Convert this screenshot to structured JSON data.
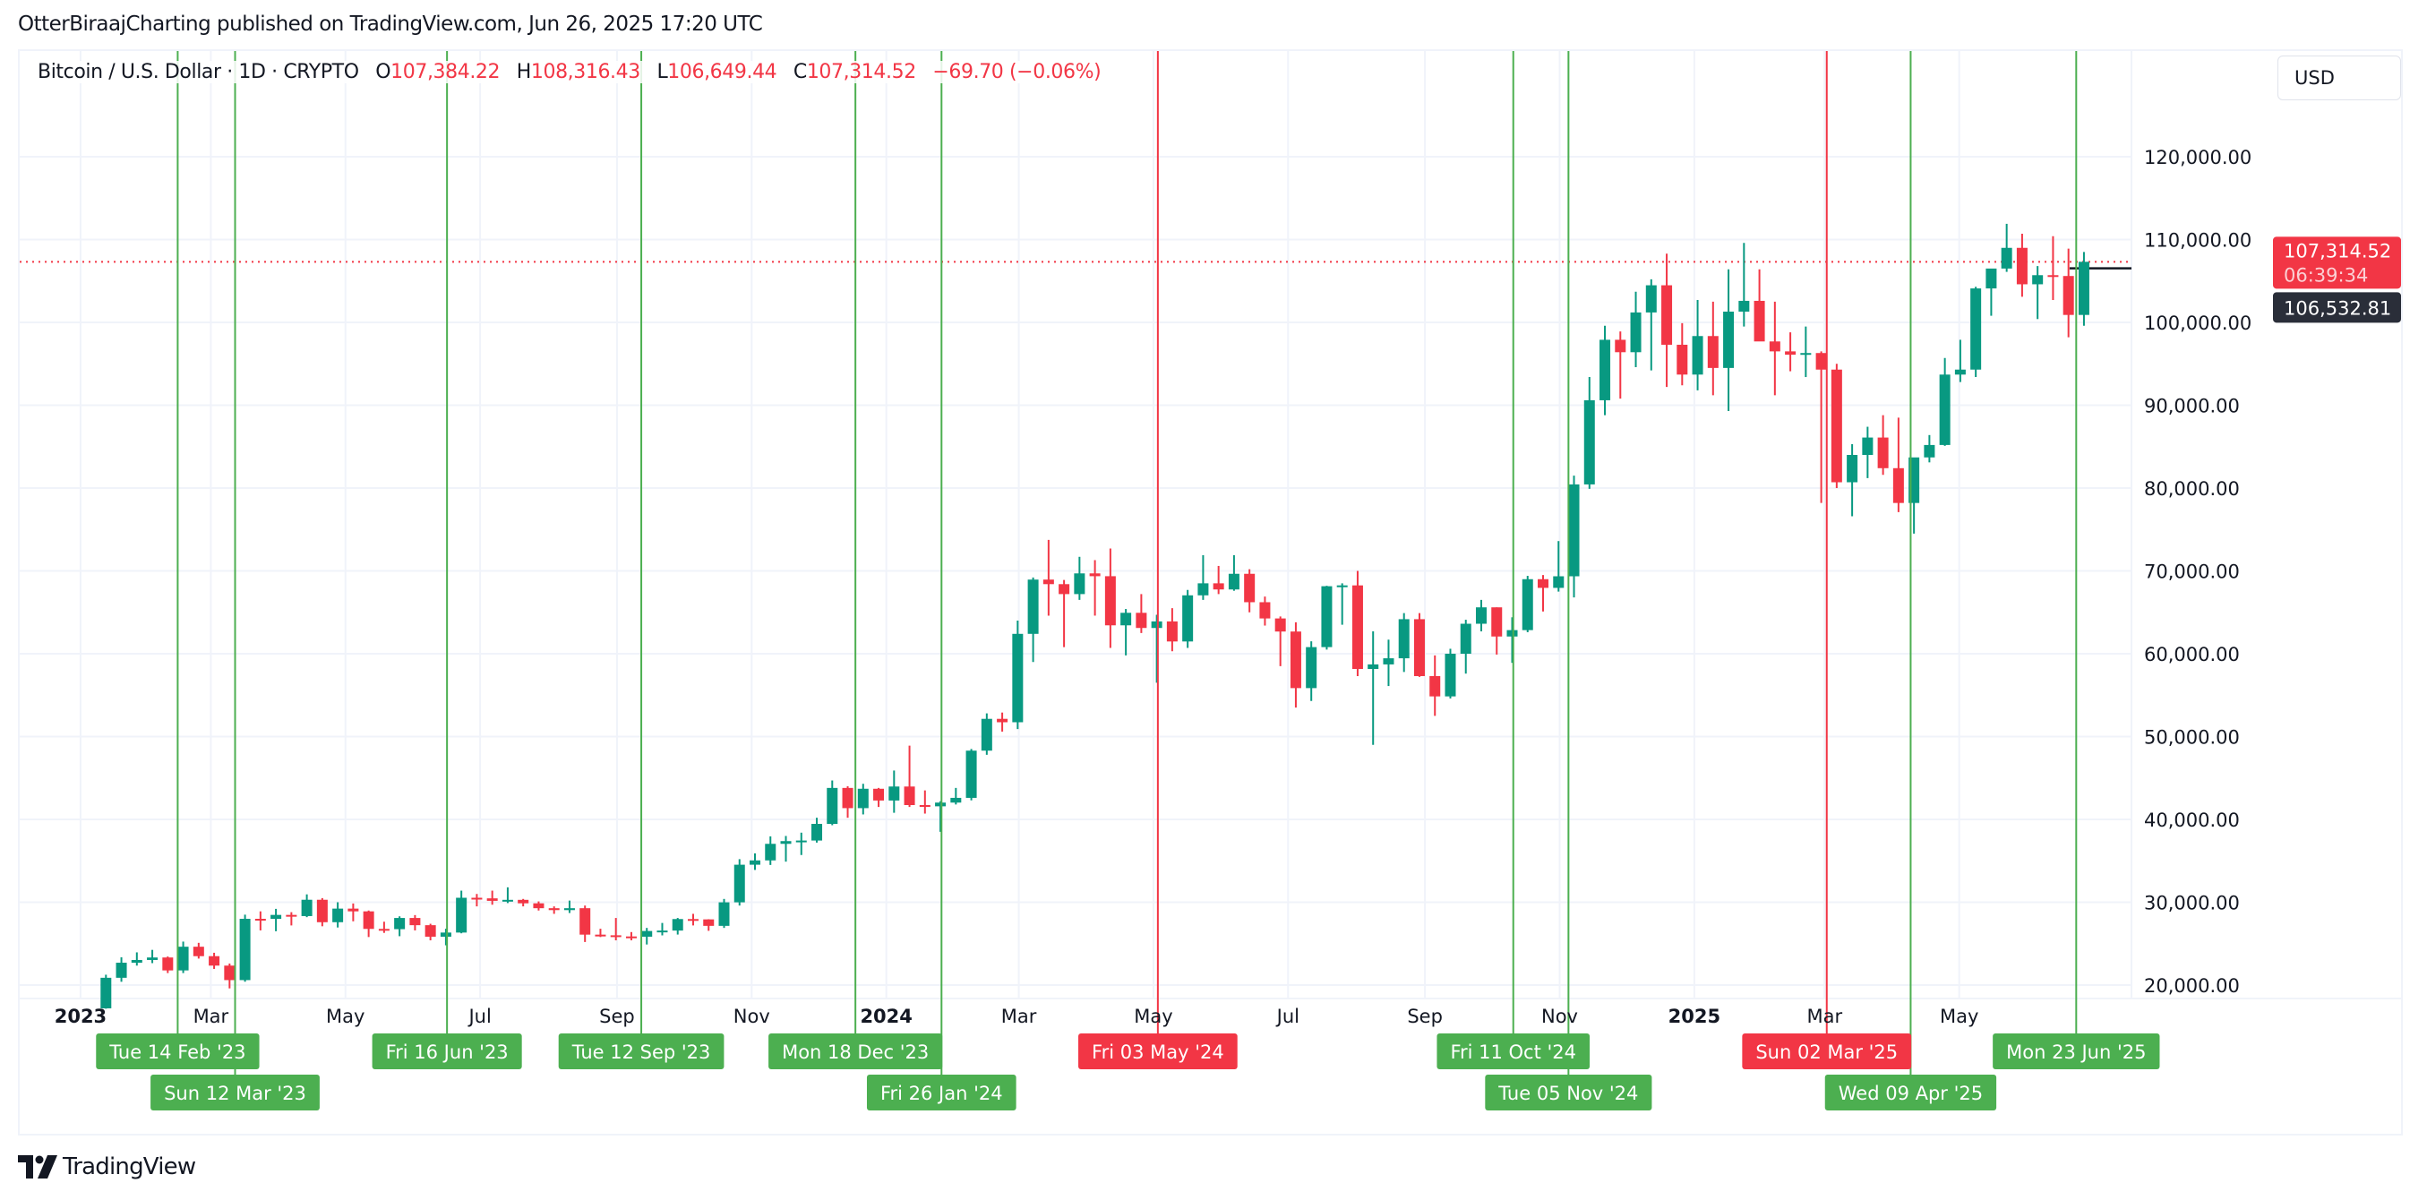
{
  "publisher": "OtterBiraajCharting published on TradingView.com, Jun 26, 2025 17:20 UTC",
  "legend": {
    "symbol": "Bitcoin / U.S. Dollar · 1D · CRYPTO",
    "open_label": "O",
    "open": "107,384.22",
    "high_label": "H",
    "high": "108,316.43",
    "low_label": "L",
    "low": "106,649.44",
    "close_label": "C",
    "close": "107,314.52",
    "change": "−69.70 (−0.06%)"
  },
  "currency_button": "USD",
  "brand": "TradingView",
  "colors": {
    "up": "#089981",
    "down": "#f23645",
    "green_marker": "#4caf50",
    "red_marker": "#f23645",
    "grid": "#f0f3fa",
    "text": "#131722"
  },
  "chart_data": {
    "type": "candlestick",
    "interval_shown": "1D",
    "start_week": "2023-01-09",
    "candle_fields": [
      "open",
      "high",
      "low",
      "close"
    ],
    "candles": [
      [
        17190,
        21250,
        17150,
        20880
      ],
      [
        20880,
        23350,
        20400,
        22700
      ],
      [
        22700,
        23950,
        22350,
        23030
      ],
      [
        23030,
        24250,
        22650,
        23330
      ],
      [
        23330,
        23450,
        21450,
        21770
      ],
      [
        21770,
        25250,
        21450,
        24630
      ],
      [
        24630,
        25100,
        23200,
        23490
      ],
      [
        23490,
        23900,
        21950,
        22350
      ],
      [
        22350,
        22600,
        19600,
        20600
      ],
      [
        20600,
        28500,
        20400,
        28000
      ],
      [
        28000,
        28900,
        26600,
        27990
      ],
      [
        27990,
        29200,
        26500,
        28470
      ],
      [
        28470,
        28800,
        27200,
        28330
      ],
      [
        28330,
        30950,
        28200,
        30300
      ],
      [
        30300,
        30500,
        27100,
        27590
      ],
      [
        27590,
        30000,
        26950,
        29230
      ],
      [
        29230,
        29850,
        27700,
        28900
      ],
      [
        28900,
        29000,
        25800,
        26780
      ],
      [
        26780,
        27650,
        26300,
        26750
      ],
      [
        26750,
        28300,
        25900,
        28100
      ],
      [
        28100,
        28450,
        26600,
        27230
      ],
      [
        27230,
        27400,
        25400,
        25840
      ],
      [
        25840,
        26800,
        24800,
        26340
      ],
      [
        26340,
        31400,
        26250,
        30540
      ],
      [
        30540,
        31000,
        29500,
        30470
      ],
      [
        30470,
        31400,
        29700,
        30170
      ],
      [
        30170,
        31800,
        29900,
        30290
      ],
      [
        30290,
        30400,
        29500,
        29870
      ],
      [
        29870,
        30100,
        29000,
        29280
      ],
      [
        29280,
        29500,
        28600,
        29050
      ],
      [
        29050,
        30200,
        28700,
        29280
      ],
      [
        29280,
        29600,
        25200,
        26090
      ],
      [
        26090,
        26800,
        25800,
        26010
      ],
      [
        26010,
        28100,
        25400,
        25870
      ],
      [
        25870,
        26400,
        25400,
        25840
      ],
      [
        25840,
        26900,
        24900,
        26530
      ],
      [
        26530,
        27500,
        26000,
        26580
      ],
      [
        26580,
        28100,
        26100,
        27970
      ],
      [
        27970,
        28600,
        27200,
        27930
      ],
      [
        27930,
        27950,
        26550,
        27150
      ],
      [
        27150,
        30400,
        26900,
        29990
      ],
      [
        29990,
        35200,
        29600,
        34530
      ],
      [
        34530,
        35900,
        33900,
        35050
      ],
      [
        35050,
        37950,
        34500,
        37050
      ],
      [
        37050,
        38000,
        34900,
        37380
      ],
      [
        37380,
        38400,
        35700,
        37450
      ],
      [
        37450,
        40200,
        37200,
        39460
      ],
      [
        39460,
        44700,
        39300,
        43800
      ],
      [
        43800,
        44000,
        40200,
        41360
      ],
      [
        41360,
        44300,
        40600,
        43700
      ],
      [
        43700,
        43800,
        41500,
        42280
      ],
      [
        42280,
        45900,
        40800,
        43970
      ],
      [
        43970,
        48900,
        41500,
        41730
      ],
      [
        41730,
        43500,
        40700,
        41580
      ],
      [
        41580,
        42200,
        38500,
        42030
      ],
      [
        42030,
        43800,
        41800,
        42600
      ],
      [
        42600,
        48500,
        42300,
        48300
      ],
      [
        48300,
        52800,
        47800,
        52140
      ],
      [
        52140,
        52900,
        50600,
        51730
      ],
      [
        51730,
        64000,
        50900,
        62400
      ],
      [
        62400,
        69200,
        59000,
        68950
      ],
      [
        68950,
        73750,
        64600,
        68400
      ],
      [
        68400,
        68900,
        60800,
        67200
      ],
      [
        67200,
        71700,
        66500,
        69700
      ],
      [
        69700,
        71300,
        64600,
        69360
      ],
      [
        69360,
        72700,
        60700,
        63430
      ],
      [
        63430,
        65400,
        59800,
        64940
      ],
      [
        64940,
        67200,
        62500,
        63110
      ],
      [
        63110,
        64700,
        56500,
        63900
      ],
      [
        63900,
        65500,
        60300,
        61480
      ],
      [
        61480,
        67700,
        60700,
        67050
      ],
      [
        67050,
        71900,
        66500,
        68500
      ],
      [
        68500,
        70600,
        67200,
        67760
      ],
      [
        67760,
        71900,
        67600,
        69650
      ],
      [
        69650,
        70200,
        65000,
        66220
      ],
      [
        66220,
        66900,
        63400,
        64260
      ],
      [
        64260,
        64500,
        58500,
        62680
      ],
      [
        62680,
        63800,
        53500,
        55850
      ],
      [
        55850,
        61500,
        54300,
        60800
      ],
      [
        60800,
        68200,
        60500,
        68150
      ],
      [
        68150,
        68500,
        63500,
        68250
      ],
      [
        68250,
        70000,
        57300,
        58160
      ],
      [
        58160,
        62700,
        49000,
        58710
      ],
      [
        58710,
        61700,
        56100,
        59450
      ],
      [
        59450,
        64900,
        57800,
        64170
      ],
      [
        64170,
        64900,
        57200,
        57300
      ],
      [
        57300,
        59800,
        52500,
        54850
      ],
      [
        54850,
        60600,
        54600,
        60000
      ],
      [
        60000,
        64100,
        57600,
        63620
      ],
      [
        63620,
        66500,
        62700,
        65600
      ],
      [
        65600,
        65600,
        59900,
        62080
      ],
      [
        62080,
        64400,
        58900,
        62850
      ],
      [
        62850,
        69400,
        62600,
        69000
      ],
      [
        69000,
        69500,
        65100,
        67950
      ],
      [
        67950,
        73600,
        67500,
        69350
      ],
      [
        69350,
        81500,
        66800,
        80440
      ],
      [
        80440,
        93400,
        79900,
        90600
      ],
      [
        90600,
        99600,
        88800,
        97900
      ],
      [
        97900,
        98900,
        90800,
        96400
      ],
      [
        96400,
        103700,
        94600,
        101200
      ],
      [
        101200,
        105200,
        94200,
        104480
      ],
      [
        104480,
        108300,
        92200,
        97300
      ],
      [
        97300,
        99900,
        92400,
        93700
      ],
      [
        93700,
        102700,
        91800,
        98350
      ],
      [
        98350,
        102500,
        91200,
        94500
      ],
      [
        94500,
        106400,
        89300,
        101300
      ],
      [
        101300,
        109600,
        99500,
        102600
      ],
      [
        102600,
        106400,
        97800,
        97700
      ],
      [
        97700,
        102500,
        91200,
        96500
      ],
      [
        96500,
        98800,
        94100,
        96100
      ],
      [
        96100,
        99500,
        93400,
        96300
      ],
      [
        96300,
        96500,
        78200,
        94300
      ],
      [
        94300,
        95000,
        80000,
        80700
      ],
      [
        80700,
        85300,
        76600,
        84000
      ],
      [
        84000,
        87400,
        81200,
        86100
      ],
      [
        86100,
        88800,
        81600,
        82400
      ],
      [
        82400,
        88500,
        77100,
        78200
      ],
      [
        78200,
        83600,
        74500,
        83700
      ],
      [
        83700,
        86400,
        83100,
        85200
      ],
      [
        85200,
        95700,
        85100,
        93700
      ],
      [
        93700,
        97900,
        92800,
        94300
      ],
      [
        94300,
        104300,
        93400,
        104100
      ],
      [
        104100,
        105800,
        100800,
        106500
      ],
      [
        106500,
        111900,
        106100,
        109000
      ],
      [
        109000,
        110700,
        103100,
        104600
      ],
      [
        104600,
        106800,
        100400,
        105700
      ],
      [
        105700,
        110400,
        102700,
        105600
      ],
      [
        105600,
        108900,
        98200,
        100900
      ],
      [
        100900,
        108500,
        99600,
        107314.52
      ]
    ],
    "y_axis": {
      "min": 20000,
      "max": 120000,
      "ticks": [
        "120,000.00",
        "110,000.00",
        "100,000.00",
        "90,000.00",
        "80,000.00",
        "70,000.00",
        "60,000.00",
        "50,000.00",
        "40,000.00",
        "30,000.00",
        "20,000.00"
      ],
      "tick_values": [
        120000,
        110000,
        100000,
        90000,
        80000,
        70000,
        60000,
        50000,
        40000,
        30000,
        20000
      ]
    },
    "x_axis": {
      "range": [
        "2023-01-01",
        "2025-07-10"
      ],
      "ticks": [
        {
          "date": "2023-01-01",
          "label": "2023",
          "bold": true
        },
        {
          "date": "2023-03-01",
          "label": "Mar"
        },
        {
          "date": "2023-05-01",
          "label": "May"
        },
        {
          "date": "2023-07-01",
          "label": "Jul"
        },
        {
          "date": "2023-09-01",
          "label": "Sep"
        },
        {
          "date": "2023-11-01",
          "label": "Nov"
        },
        {
          "date": "2024-01-01",
          "label": "2024",
          "bold": true
        },
        {
          "date": "2024-03-01",
          "label": "Mar"
        },
        {
          "date": "2024-05-01",
          "label": "May"
        },
        {
          "date": "2024-07-01",
          "label": "Jul"
        },
        {
          "date": "2024-09-01",
          "label": "Sep"
        },
        {
          "date": "2024-11-01",
          "label": "Nov"
        },
        {
          "date": "2025-01-01",
          "label": "2025",
          "bold": true
        },
        {
          "date": "2025-03-01",
          "label": "Mar"
        },
        {
          "date": "2025-05-01",
          "label": "May"
        }
      ]
    },
    "grid": true,
    "last_price": {
      "value": 107314.52,
      "label": "107,314.52",
      "countdown": "06:39:34"
    },
    "horizontal_line": {
      "value": 106532.81,
      "label": "106,532.81",
      "from_date": "2025-06-20"
    },
    "vertical_markers": [
      {
        "date": "2023-02-14",
        "label": "Tue 14 Feb '23",
        "color": "green"
      },
      {
        "date": "2023-03-12",
        "label": "Sun 12 Mar '23",
        "color": "green"
      },
      {
        "date": "2023-06-16",
        "label": "Fri 16 Jun '23",
        "color": "green"
      },
      {
        "date": "2023-09-12",
        "label": "Tue 12 Sep '23",
        "color": "green"
      },
      {
        "date": "2023-12-18",
        "label": "Mon 18 Dec '23",
        "color": "green"
      },
      {
        "date": "2024-01-26",
        "label": "Fri 26 Jan '24",
        "color": "green"
      },
      {
        "date": "2024-10-11",
        "label": "Fri 11 Oct '24",
        "color": "green"
      },
      {
        "date": "2024-11-05",
        "label": "Tue 05 Nov '24",
        "color": "green"
      },
      {
        "date": "2025-04-09",
        "label": "Wed 09 Apr '25",
        "color": "green"
      },
      {
        "date": "2025-06-23",
        "label": "Mon 23 Jun '25",
        "color": "green"
      },
      {
        "date": "2024-05-03",
        "label": "Fri 03 May '24",
        "color": "red"
      },
      {
        "date": "2025-03-02",
        "label": "Sun 02 Mar '25",
        "color": "red"
      }
    ]
  }
}
